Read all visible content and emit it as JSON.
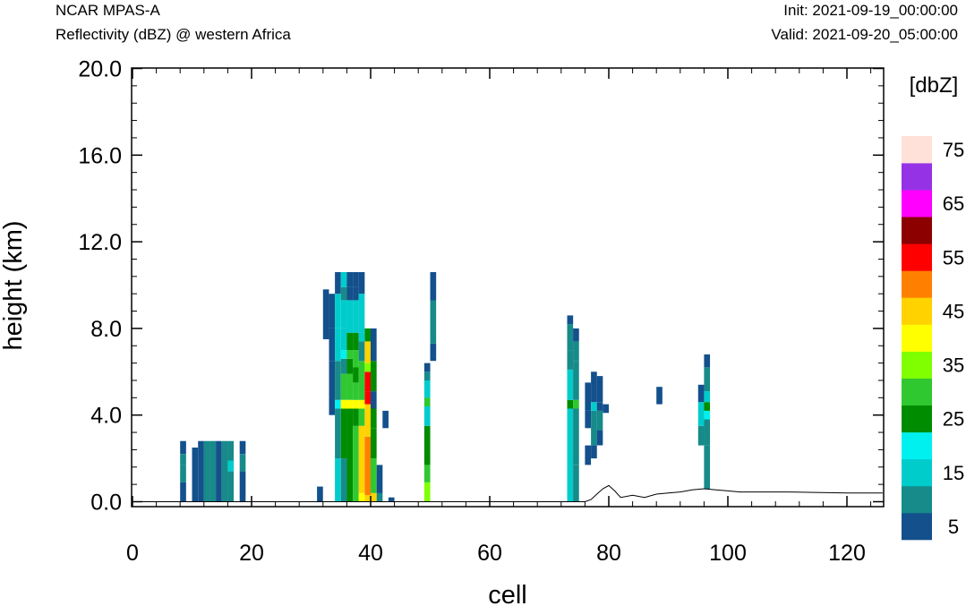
{
  "header": {
    "model": "NCAR MPAS-A",
    "field": "Reflectivity (dBZ) @ western Africa",
    "init": "Init: 2021-09-19_00:00:00",
    "valid": "Valid: 2021-09-20_05:00:00"
  },
  "chart_data": {
    "type": "heatmap",
    "xlabel": "cell",
    "ylabel": "height (km)",
    "xlim": [
      0,
      126
    ],
    "ylim": [
      -0.3,
      20.0
    ],
    "x_ticks": [
      0,
      20,
      40,
      60,
      80,
      100,
      120
    ],
    "x_tick_labels": [
      "0",
      "20",
      "40",
      "60",
      "80",
      "100",
      "120"
    ],
    "y_ticks": [
      0,
      4,
      8,
      12,
      16,
      20
    ],
    "y_tick_labels": [
      "0.0",
      "4.0",
      "8.0",
      "12.0",
      "16.0",
      "20.0"
    ],
    "colorbar": {
      "title": "[dbZ]",
      "levels": [
        5,
        10,
        15,
        20,
        25,
        30,
        35,
        40,
        45,
        50,
        55,
        60,
        65,
        70,
        75
      ],
      "colors": [
        "#13508c",
        "#178a8a",
        "#00cccc",
        "#00f0f0",
        "#008c00",
        "#30c830",
        "#80ff00",
        "#ffff00",
        "#ffd200",
        "#ff8000",
        "#ff0000",
        "#8c0000",
        "#ff00ff",
        "#9632e6",
        "#ffe1d9"
      ],
      "tick_labels": [
        "5",
        "15",
        "25",
        "35",
        "45",
        "55",
        "65",
        "75"
      ]
    },
    "terrain": [
      [
        0,
        0
      ],
      [
        76,
        0
      ],
      [
        77,
        0.1
      ],
      [
        78,
        0.35
      ],
      [
        79,
        0.6
      ],
      [
        80,
        0.75
      ],
      [
        81,
        0.5
      ],
      [
        82,
        0.2
      ],
      [
        84,
        0.3
      ],
      [
        86,
        0.2
      ],
      [
        88,
        0.35
      ],
      [
        90,
        0.4
      ],
      [
        92,
        0.45
      ],
      [
        94,
        0.55
      ],
      [
        96,
        0.6
      ],
      [
        98,
        0.55
      ],
      [
        100,
        0.5
      ],
      [
        102,
        0.45
      ],
      [
        110,
        0.45
      ],
      [
        120,
        0.4
      ],
      [
        126,
        0.4
      ]
    ],
    "cells": [
      {
        "x": 8,
        "bands": [
          [
            0,
            0.9,
            5
          ],
          [
            0.9,
            1.7,
            10
          ],
          [
            1.7,
            2.2,
            10
          ],
          [
            2.2,
            2.8,
            5
          ]
        ]
      },
      {
        "x": 10,
        "bands": [
          [
            0,
            2.5,
            5
          ]
        ]
      },
      {
        "x": 11,
        "bands": [
          [
            0,
            2.8,
            5
          ]
        ]
      },
      {
        "x": 12,
        "bands": [
          [
            0,
            2.8,
            10
          ]
        ]
      },
      {
        "x": 13,
        "bands": [
          [
            0,
            2.8,
            10
          ]
        ]
      },
      {
        "x": 14,
        "bands": [
          [
            0,
            2.8,
            5
          ]
        ]
      },
      {
        "x": 15,
        "bands": [
          [
            0,
            2.8,
            10
          ]
        ]
      },
      {
        "x": 16,
        "bands": [
          [
            0,
            1.4,
            10
          ],
          [
            1.4,
            1.9,
            15
          ],
          [
            1.9,
            2.8,
            10
          ]
        ]
      },
      {
        "x": 18,
        "bands": [
          [
            0,
            1.4,
            5
          ],
          [
            1.4,
            2.2,
            10
          ],
          [
            2.2,
            2.8,
            5
          ]
        ]
      },
      {
        "x": 31,
        "bands": [
          [
            0,
            0.7,
            5
          ]
        ]
      },
      {
        "x": 32,
        "bands": [
          [
            7.5,
            9.8,
            5
          ]
        ]
      },
      {
        "x": 33,
        "bands": [
          [
            4.0,
            6.5,
            5
          ],
          [
            6.5,
            8.0,
            5
          ],
          [
            8.0,
            9.6,
            5
          ]
        ]
      },
      {
        "x": 34,
        "bands": [
          [
            0,
            2.0,
            15
          ],
          [
            2.0,
            4.3,
            10
          ],
          [
            4.3,
            4.7,
            20
          ],
          [
            4.7,
            6.5,
            10
          ],
          [
            6.5,
            8.0,
            15
          ],
          [
            8.0,
            9.6,
            15
          ],
          [
            9.6,
            10.6,
            5
          ]
        ]
      },
      {
        "x": 35,
        "bands": [
          [
            0,
            2.0,
            10
          ],
          [
            2.0,
            4.3,
            25
          ],
          [
            4.3,
            4.7,
            40
          ],
          [
            4.7,
            5.9,
            30
          ],
          [
            5.9,
            6.6,
            10
          ],
          [
            6.6,
            7.0,
            20
          ],
          [
            7.0,
            8.0,
            15
          ],
          [
            8.0,
            9.3,
            15
          ],
          [
            9.3,
            9.9,
            10
          ],
          [
            9.9,
            10.6,
            15
          ]
        ]
      },
      {
        "x": 36,
        "bands": [
          [
            0,
            4.3,
            25
          ],
          [
            4.3,
            4.7,
            40
          ],
          [
            4.7,
            5.9,
            30
          ],
          [
            5.9,
            6.6,
            25
          ],
          [
            6.6,
            7.0,
            30
          ],
          [
            7.0,
            7.8,
            25
          ],
          [
            7.8,
            9.3,
            15
          ],
          [
            9.3,
            9.9,
            5
          ],
          [
            9.9,
            10.6,
            5
          ]
        ]
      },
      {
        "x": 37,
        "bands": [
          [
            0,
            3.5,
            30
          ],
          [
            3.5,
            4.3,
            25
          ],
          [
            4.3,
            4.7,
            40
          ],
          [
            4.7,
            5.5,
            30
          ],
          [
            5.5,
            6.2,
            25
          ],
          [
            6.2,
            7.0,
            30
          ],
          [
            7.0,
            7.8,
            25
          ],
          [
            7.8,
            9.3,
            15
          ],
          [
            9.3,
            9.9,
            5
          ],
          [
            9.9,
            10.6,
            5
          ]
        ]
      },
      {
        "x": 38,
        "bands": [
          [
            0,
            0.4,
            40
          ],
          [
            0.4,
            3.5,
            45
          ],
          [
            3.5,
            4.3,
            30
          ],
          [
            4.3,
            4.7,
            40
          ],
          [
            4.7,
            6.5,
            30
          ],
          [
            6.5,
            7.4,
            10
          ],
          [
            7.4,
            7.8,
            15
          ],
          [
            7.8,
            9.6,
            15
          ],
          [
            9.6,
            10.6,
            5
          ]
        ]
      },
      {
        "x": 39,
        "bands": [
          [
            0,
            0.3,
            45
          ],
          [
            0.3,
            3.0,
            50
          ],
          [
            3.0,
            4.5,
            45
          ],
          [
            4.5,
            5.1,
            55
          ],
          [
            5.1,
            6.0,
            55
          ],
          [
            6.0,
            6.4,
            35
          ],
          [
            6.4,
            7.4,
            45
          ],
          [
            7.4,
            8.0,
            25
          ]
        ]
      },
      {
        "x": 40,
        "bands": [
          [
            0,
            0.4,
            45
          ],
          [
            0.4,
            2.0,
            30
          ],
          [
            2.0,
            3.4,
            25
          ],
          [
            3.4,
            4.3,
            25
          ],
          [
            4.3,
            5.1,
            5
          ],
          [
            5.1,
            6.5,
            25
          ],
          [
            6.5,
            8.0,
            5
          ]
        ]
      },
      {
        "x": 41,
        "bands": [
          [
            0,
            0.4,
            10
          ],
          [
            0.4,
            1.7,
            5
          ]
        ]
      },
      {
        "x": 42,
        "bands": [
          [
            3.4,
            4.2,
            5
          ]
        ]
      },
      {
        "x": 43,
        "bands": [
          [
            0,
            0.2,
            5
          ]
        ]
      },
      {
        "x": 49,
        "bands": [
          [
            0,
            0.9,
            35
          ],
          [
            0.9,
            1.7,
            30
          ],
          [
            1.7,
            3.5,
            25
          ],
          [
            3.5,
            4.4,
            15
          ],
          [
            4.4,
            4.8,
            30
          ],
          [
            4.8,
            5.6,
            15
          ],
          [
            5.6,
            6.0,
            10
          ],
          [
            6.0,
            6.4,
            5
          ]
        ]
      },
      {
        "x": 50,
        "bands": [
          [
            6.5,
            7.3,
            5
          ],
          [
            7.3,
            9.3,
            10
          ],
          [
            9.3,
            10.6,
            5
          ]
        ]
      },
      {
        "x": 73,
        "bands": [
          [
            0,
            4.3,
            15
          ],
          [
            4.3,
            4.7,
            25
          ],
          [
            4.7,
            6.1,
            15
          ],
          [
            6.1,
            7.0,
            10
          ],
          [
            7.0,
            8.2,
            10
          ],
          [
            8.2,
            8.6,
            5
          ]
        ]
      },
      {
        "x": 74,
        "bands": [
          [
            0,
            1.7,
            10
          ],
          [
            1.7,
            4.3,
            10
          ],
          [
            4.3,
            4.7,
            30
          ],
          [
            4.7,
            6.5,
            10
          ],
          [
            6.5,
            7.4,
            10
          ],
          [
            7.4,
            8.0,
            5
          ]
        ]
      },
      {
        "x": 76,
        "bands": [
          [
            1.7,
            2.6,
            5
          ],
          [
            3.4,
            4.2,
            5
          ],
          [
            4.2,
            5.5,
            5
          ]
        ]
      },
      {
        "x": 77,
        "bands": [
          [
            2.0,
            2.6,
            5
          ],
          [
            2.6,
            4.2,
            10
          ],
          [
            4.2,
            4.6,
            15
          ],
          [
            4.6,
            5.6,
            5
          ],
          [
            5.6,
            6.0,
            5
          ]
        ]
      },
      {
        "x": 78,
        "bands": [
          [
            2.6,
            3.3,
            5
          ],
          [
            3.3,
            4.2,
            10
          ],
          [
            4.2,
            4.6,
            5
          ],
          [
            4.6,
            5.8,
            5
          ]
        ]
      },
      {
        "x": 79,
        "bands": [
          [
            4.1,
            4.5,
            5
          ]
        ]
      },
      {
        "x": 88,
        "bands": [
          [
            4.5,
            5.3,
            5
          ]
        ]
      },
      {
        "x": 95,
        "bands": [
          [
            2.6,
            3.5,
            10
          ],
          [
            3.5,
            4.6,
            15
          ],
          [
            4.6,
            5.4,
            5
          ]
        ]
      },
      {
        "x": 96,
        "bands": [
          [
            0.6,
            2.6,
            10
          ],
          [
            2.6,
            3.8,
            10
          ],
          [
            3.8,
            4.2,
            20
          ],
          [
            4.2,
            4.6,
            25
          ],
          [
            4.6,
            5.1,
            15
          ],
          [
            5.1,
            6.2,
            10
          ],
          [
            6.2,
            6.8,
            5
          ]
        ]
      }
    ]
  }
}
